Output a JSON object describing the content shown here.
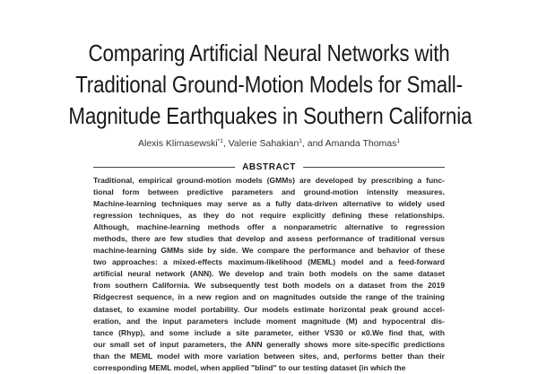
{
  "paper": {
    "title_lines": [
      "Comparing Artificial Neural Networks with",
      "Traditional Ground-Motion Models for Small-",
      "Magnitude Earthquakes in Southern California"
    ],
    "authors": {
      "author1": "Alexis Klimasewski",
      "author1_marks": "*1",
      "sep1": ", ",
      "author2": "Valerie Sahakian",
      "author2_marks": "1",
      "sep2": ", and ",
      "author3": "Amanda Thomas",
      "author3_marks": "1"
    },
    "abstract_heading": "ABSTRACT",
    "abstract_lines": [
      "Traditional, empirical ground-motion models (GMMs) are developed by prescribing a func-",
      "tional form between predictive parameters and ground-motion intensity measures.",
      "Machine-learning techniques may serve as a fully data-driven alternative to widely used",
      "regression techniques, as they do not require explicitly defining these relationships.",
      "Although, machine-learning methods offer a nonparametric alternative to regression",
      "methods, there are few studies that develop and assess performance of traditional versus",
      "machine-learning GMMs side by side. We compare the performance and behavior of these",
      "two approaches: a mixed-effects maximum-likelihood (MEML) model and a feed-forward",
      "artificial neural network (ANN). We develop and train both models on the same dataset",
      "from southern California. We subsequently test both models on a dataset from the 2019",
      "Ridgecrest sequence, in a new region and on magnitudes outside the range of the training",
      "dataset, to examine model portability. Our models estimate horizontal peak ground accel-",
      "eration, and the input parameters include moment magnitude (M) and hypocentral dis-",
      "tance (Rhyp), and some include a site parameter, either VS30 or κ0.We find that, with",
      "our small set of input parameters, the ANN generally shows more site-specific predictions",
      "than the MEML model with more variation between sites, and, performs better than their",
      "corresponding MEML model, when applied \"blind\" to our testing dataset (in which the"
    ]
  }
}
